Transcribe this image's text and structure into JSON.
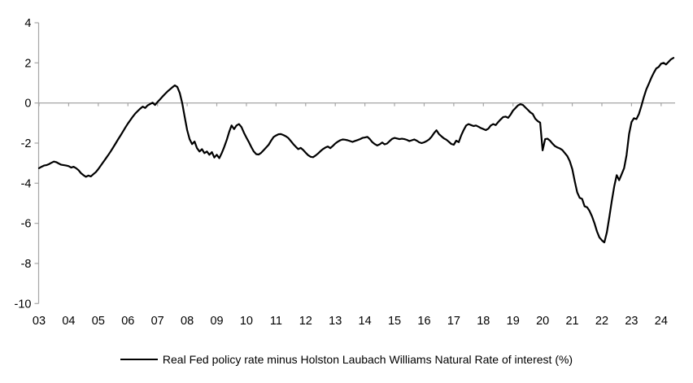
{
  "legend": {
    "series_label": "Real Fed policy rate minus Holston Laubach Williams Natural Rate of interest (%)"
  },
  "chart_data": {
    "type": "line",
    "title": "",
    "xlabel": "",
    "ylabel": "",
    "legend_position": "bottom-center",
    "grid": "zero-line-only",
    "line_color": "#000000",
    "axis_color": "#a6a6a6",
    "text_color": "#000000",
    "ylim": [
      -10,
      4
    ],
    "y_ticks": [
      4,
      2,
      0,
      -2,
      -4,
      -6,
      -8,
      -10
    ],
    "y_tick_labels": [
      "4",
      "2",
      "0",
      "-2",
      "-4",
      "-6",
      "-8",
      "-10"
    ],
    "x_tick_labels": [
      "03",
      "04",
      "05",
      "06",
      "07",
      "08",
      "09",
      "10",
      "11",
      "12",
      "13",
      "14",
      "15",
      "16",
      "17",
      "18",
      "19",
      "20",
      "21",
      "22",
      "23",
      "24"
    ],
    "series": [
      {
        "name": "Real Fed policy rate minus Holston Laubach Williams Natural Rate of interest (%)",
        "x_start_year": 2003,
        "frequency": "monthly",
        "values": [
          -3.25,
          -3.18,
          -3.12,
          -3.1,
          -3.05,
          -2.98,
          -2.92,
          -2.95,
          -3.02,
          -3.08,
          -3.1,
          -3.12,
          -3.15,
          -3.22,
          -3.18,
          -3.25,
          -3.35,
          -3.5,
          -3.6,
          -3.68,
          -3.62,
          -3.66,
          -3.55,
          -3.45,
          -3.3,
          -3.12,
          -2.95,
          -2.78,
          -2.6,
          -2.42,
          -2.22,
          -2.02,
          -1.82,
          -1.62,
          -1.42,
          -1.22,
          -1.02,
          -0.85,
          -0.68,
          -0.52,
          -0.4,
          -0.28,
          -0.18,
          -0.25,
          -0.12,
          -0.05,
          0.02,
          -0.1,
          0.05,
          0.18,
          0.32,
          0.45,
          0.57,
          0.68,
          0.78,
          0.88,
          0.8,
          0.5,
          0.0,
          -0.7,
          -1.35,
          -1.8,
          -2.05,
          -1.92,
          -2.25,
          -2.42,
          -2.3,
          -2.5,
          -2.42,
          -2.58,
          -2.45,
          -2.72,
          -2.58,
          -2.75,
          -2.5,
          -2.2,
          -1.85,
          -1.45,
          -1.12,
          -1.3,
          -1.12,
          -1.05,
          -1.2,
          -1.48,
          -1.72,
          -1.95,
          -2.2,
          -2.42,
          -2.55,
          -2.57,
          -2.48,
          -2.35,
          -2.22,
          -2.08,
          -1.88,
          -1.7,
          -1.62,
          -1.56,
          -1.55,
          -1.6,
          -1.66,
          -1.75,
          -1.9,
          -2.05,
          -2.18,
          -2.3,
          -2.24,
          -2.34,
          -2.48,
          -2.6,
          -2.68,
          -2.7,
          -2.62,
          -2.52,
          -2.4,
          -2.3,
          -2.22,
          -2.17,
          -2.25,
          -2.14,
          -2.02,
          -1.93,
          -1.86,
          -1.82,
          -1.83,
          -1.86,
          -1.9,
          -1.94,
          -1.89,
          -1.85,
          -1.8,
          -1.74,
          -1.72,
          -1.69,
          -1.8,
          -1.95,
          -2.05,
          -2.12,
          -2.06,
          -1.97,
          -2.06,
          -2.02,
          -1.9,
          -1.79,
          -1.74,
          -1.77,
          -1.8,
          -1.78,
          -1.8,
          -1.84,
          -1.9,
          -1.86,
          -1.82,
          -1.88,
          -1.96,
          -2.0,
          -1.96,
          -1.9,
          -1.82,
          -1.68,
          -1.5,
          -1.36,
          -1.55,
          -1.66,
          -1.76,
          -1.83,
          -1.93,
          -2.04,
          -2.08,
          -1.88,
          -1.95,
          -1.62,
          -1.35,
          -1.12,
          -1.05,
          -1.1,
          -1.15,
          -1.12,
          -1.18,
          -1.25,
          -1.3,
          -1.35,
          -1.28,
          -1.12,
          -1.05,
          -1.1,
          -0.95,
          -0.82,
          -0.7,
          -0.68,
          -0.74,
          -0.58,
          -0.38,
          -0.25,
          -0.12,
          -0.06,
          -0.1,
          -0.22,
          -0.34,
          -0.47,
          -0.55,
          -0.78,
          -0.9,
          -0.98,
          -2.36,
          -1.8,
          -1.78,
          -1.88,
          -2.03,
          -2.15,
          -2.22,
          -2.27,
          -2.35,
          -2.5,
          -2.65,
          -2.9,
          -3.3,
          -3.9,
          -4.45,
          -4.73,
          -4.78,
          -5.15,
          -5.2,
          -5.38,
          -5.65,
          -6.0,
          -6.4,
          -6.7,
          -6.85,
          -6.95,
          -6.45,
          -5.7,
          -4.9,
          -4.15,
          -3.6,
          -3.85,
          -3.55,
          -3.25,
          -2.6,
          -1.55,
          -0.95,
          -0.76,
          -0.8,
          -0.55,
          -0.15,
          0.3,
          0.68,
          0.95,
          1.25,
          1.5,
          1.72,
          1.8,
          1.96,
          2.0,
          1.92,
          2.05,
          2.18,
          2.25
        ]
      }
    ]
  }
}
